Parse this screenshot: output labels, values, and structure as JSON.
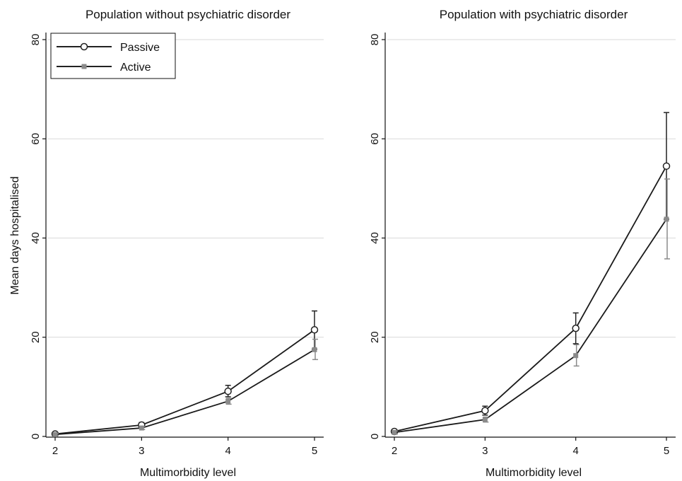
{
  "chart_data": [
    {
      "type": "line",
      "title": "Population without psychiatric disorder",
      "xlabel": "Multimorbidity level",
      "ylabel": "Mean days hospitalised",
      "x": [
        2,
        3,
        4,
        5
      ],
      "xlim": [
        2,
        5
      ],
      "ylim": [
        0,
        80
      ],
      "yticks": [
        0,
        20,
        40,
        60,
        80
      ],
      "grid": true,
      "legend": "top-left",
      "series": [
        {
          "name": "Passive",
          "marker": "hollow-circle",
          "color": "#222222",
          "values": [
            0.5,
            2.3,
            9.1,
            21.5
          ],
          "ci_low": [
            0.3,
            1.9,
            8.0,
            17.6
          ],
          "ci_high": [
            0.8,
            2.8,
            10.3,
            25.3
          ]
        },
        {
          "name": "Active",
          "marker": "square",
          "color": "#8a8a8a",
          "values": [
            0.4,
            1.7,
            7.1,
            17.5
          ],
          "ci_low": [
            0.2,
            1.4,
            6.5,
            15.5
          ],
          "ci_high": [
            0.6,
            2.0,
            7.7,
            19.6
          ]
        }
      ]
    },
    {
      "type": "line",
      "title": "Population with psychiatric disorder",
      "xlabel": "Multimorbidity level",
      "ylabel": "",
      "x": [
        2,
        3,
        4,
        5
      ],
      "xlim": [
        2,
        5
      ],
      "ylim": [
        0,
        80
      ],
      "yticks": [
        0,
        20,
        40,
        60,
        80
      ],
      "grid": true,
      "series": [
        {
          "name": "Passive",
          "marker": "hollow-circle",
          "color": "#222222",
          "values": [
            1.0,
            5.2,
            21.8,
            54.5
          ],
          "ci_low": [
            0.6,
            4.3,
            18.7,
            43.8
          ],
          "ci_high": [
            1.4,
            6.1,
            24.9,
            65.3
          ]
        },
        {
          "name": "Active",
          "marker": "square",
          "color": "#8a8a8a",
          "values": [
            0.8,
            3.4,
            16.3,
            43.8
          ],
          "ci_low": [
            0.5,
            2.9,
            14.2,
            35.8
          ],
          "ci_high": [
            1.1,
            3.9,
            18.5,
            51.9
          ]
        }
      ]
    }
  ]
}
